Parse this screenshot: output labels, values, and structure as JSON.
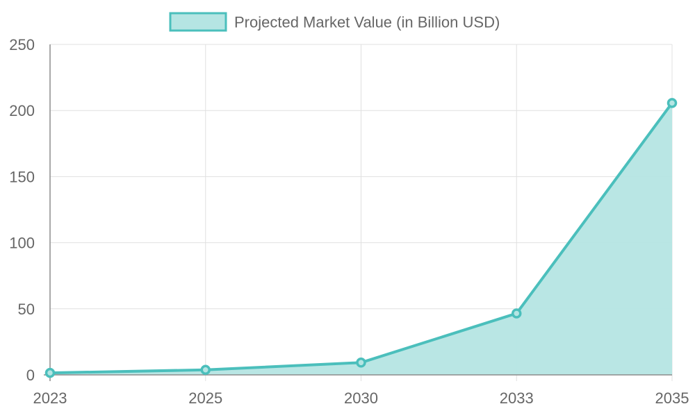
{
  "chart_data": {
    "type": "area",
    "categories": [
      "2023",
      "2025",
      "2030",
      "2033",
      "2035"
    ],
    "series": [
      {
        "name": "Projected Market Value (in Billion USD)",
        "values": [
          1.5,
          3.8,
          9.3,
          46.5,
          205.7
        ]
      }
    ],
    "ylim": [
      0,
      250
    ],
    "yticks": [
      0,
      50,
      100,
      150,
      200,
      250
    ],
    "grid": true,
    "legend_position": "top",
    "colors": {
      "line": "#4bbfbc",
      "fill": "#b5e5e3",
      "grid": "#e0e0e0",
      "axis": "#8c8c8c",
      "text": "#666666"
    }
  }
}
